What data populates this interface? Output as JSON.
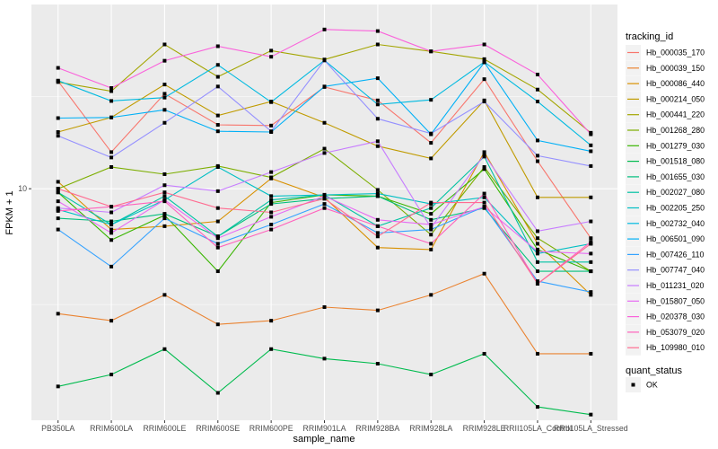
{
  "chart_data": {
    "type": "line",
    "title": "",
    "xlabel": "sample_name",
    "ylabel": "FPKM + 1",
    "y_scale": "log10",
    "y_ticks": [
      10
    ],
    "y_tick_labels": [
      "10"
    ],
    "ylim": [
      1.43,
      47
    ],
    "grid": true,
    "legend_position": "right",
    "categories": [
      "PB350LA",
      "RRIM600LA",
      "RRIM600LE",
      "RRIM600SE",
      "RRIM600PE",
      "RRIM901LA",
      "RRIM928BA",
      "RRIM928LA",
      "RRIM928LE",
      "RRII105LA_Control",
      "RRII105LA_Stressed"
    ],
    "color_legend_title": "tracking_id",
    "shape_legend_title": "quant_status",
    "shape_legend_items": [
      {
        "label": "OK",
        "shape": "square"
      }
    ],
    "series": [
      {
        "name": "Hb_000035_170",
        "color": "#F8766D",
        "values": [
          24.7,
          13.6,
          22.2,
          17.1,
          17.0,
          23.5,
          21.0,
          14.7,
          25.1,
          12.6,
          6.6
        ]
      },
      {
        "name": "Hb_000039_150",
        "color": "#EA8331",
        "values": [
          3.5,
          3.3,
          4.1,
          3.2,
          3.3,
          3.7,
          3.6,
          4.1,
          4.9,
          2.5,
          2.5
        ]
      },
      {
        "name": "Hb_000086_440",
        "color": "#D89000",
        "values": [
          10.6,
          7.1,
          7.3,
          7.6,
          10.9,
          9.3,
          6.1,
          6.0,
          13.6,
          6.3,
          4.1
        ]
      },
      {
        "name": "Hb_000214_050",
        "color": "#C09B00",
        "values": [
          16.1,
          18.2,
          24.0,
          18.5,
          20.8,
          17.4,
          14.3,
          12.9,
          21.0,
          9.3,
          9.3
        ]
      },
      {
        "name": "Hb_000441_220",
        "color": "#A3A500",
        "values": [
          24.5,
          22.7,
          33.6,
          25.6,
          31.9,
          29.6,
          33.6,
          31.7,
          29.7,
          23.0,
          16.0
        ]
      },
      {
        "name": "Hb_001268_280",
        "color": "#7CAE00",
        "values": [
          10.0,
          12.0,
          11.3,
          12.1,
          11.0,
          14.0,
          9.9,
          6.8,
          12.0,
          6.6,
          5.0
        ]
      },
      {
        "name": "Hb_001279_030",
        "color": "#39B600",
        "values": [
          9.7,
          6.5,
          8.0,
          5.0,
          8.9,
          9.5,
          9.4,
          8.1,
          11.8,
          6.0,
          5.0
        ]
      },
      {
        "name": "Hb_001518_080",
        "color": "#00BB4E",
        "values": [
          1.9,
          2.1,
          2.6,
          1.8,
          2.6,
          2.4,
          2.3,
          2.1,
          2.5,
          1.6,
          1.5
        ]
      },
      {
        "name": "Hb_001655_030",
        "color": "#00BF7D",
        "values": [
          7.8,
          7.6,
          8.1,
          6.7,
          8.8,
          9.2,
          9.4,
          7.7,
          8.5,
          5.0,
          5.0
        ]
      },
      {
        "name": "Hb_002027_080",
        "color": "#00C1A3",
        "values": [
          9.7,
          7.4,
          9.4,
          6.7,
          9.1,
          9.5,
          7.3,
          8.5,
          13.1,
          5.4,
          5.4
        ]
      },
      {
        "name": "Hb_002205_250",
        "color": "#00BFC4",
        "values": [
          8.4,
          7.4,
          9.1,
          12.0,
          9.4,
          9.5,
          9.6,
          8.8,
          9.3,
          5.8,
          6.3
        ]
      },
      {
        "name": "Hb_002732_040",
        "color": "#00BAE0",
        "values": [
          24.8,
          20.9,
          21.5,
          28.3,
          20.7,
          29.4,
          20.3,
          21.1,
          29.0,
          20.8,
          14.4
        ]
      },
      {
        "name": "Hb_006501_090",
        "color": "#00B0F6",
        "values": [
          18.1,
          18.2,
          19.4,
          16.2,
          16.1,
          23.6,
          25.3,
          15.8,
          28.9,
          15.0,
          13.7
        ]
      },
      {
        "name": "Hb_007426_110",
        "color": "#35A2FF",
        "values": [
          7.1,
          5.2,
          7.8,
          6.3,
          7.4,
          8.8,
          6.9,
          7.1,
          8.6,
          4.6,
          4.2
        ]
      },
      {
        "name": "Hb_007747_040",
        "color": "#9590FF",
        "values": [
          15.6,
          13.0,
          17.4,
          23.6,
          16.2,
          29.4,
          18.0,
          15.9,
          20.8,
          13.2,
          12.1
        ]
      },
      {
        "name": "Hb_011231_020",
        "color": "#C77CFF",
        "values": [
          8.5,
          8.2,
          10.3,
          9.8,
          11.5,
          13.5,
          14.9,
          7.2,
          13.3,
          7.0,
          7.6
        ]
      },
      {
        "name": "Hb_015807_050",
        "color": "#E76BF3",
        "values": [
          9.0,
          6.9,
          9.1,
          6.6,
          7.9,
          9.4,
          7.7,
          7.4,
          8.6,
          5.9,
          5.8
        ]
      },
      {
        "name": "Hb_020378_030",
        "color": "#FA62DB",
        "values": [
          27.6,
          23.3,
          29.3,
          33.1,
          30.3,
          38.1,
          37.6,
          31.7,
          33.6,
          26.1,
          15.8
        ]
      },
      {
        "name": "Hb_053079_020",
        "color": "#FF62BC",
        "values": [
          8.3,
          8.6,
          9.0,
          6.1,
          7.1,
          8.5,
          7.3,
          6.3,
          9.6,
          4.5,
          6.4
        ]
      },
      {
        "name": "Hb_109980_010",
        "color": "#FF6C91",
        "values": [
          10.0,
          8.6,
          9.7,
          8.5,
          8.2,
          9.2,
          6.7,
          8.9,
          8.9,
          4.5,
          6.3
        ]
      }
    ]
  }
}
